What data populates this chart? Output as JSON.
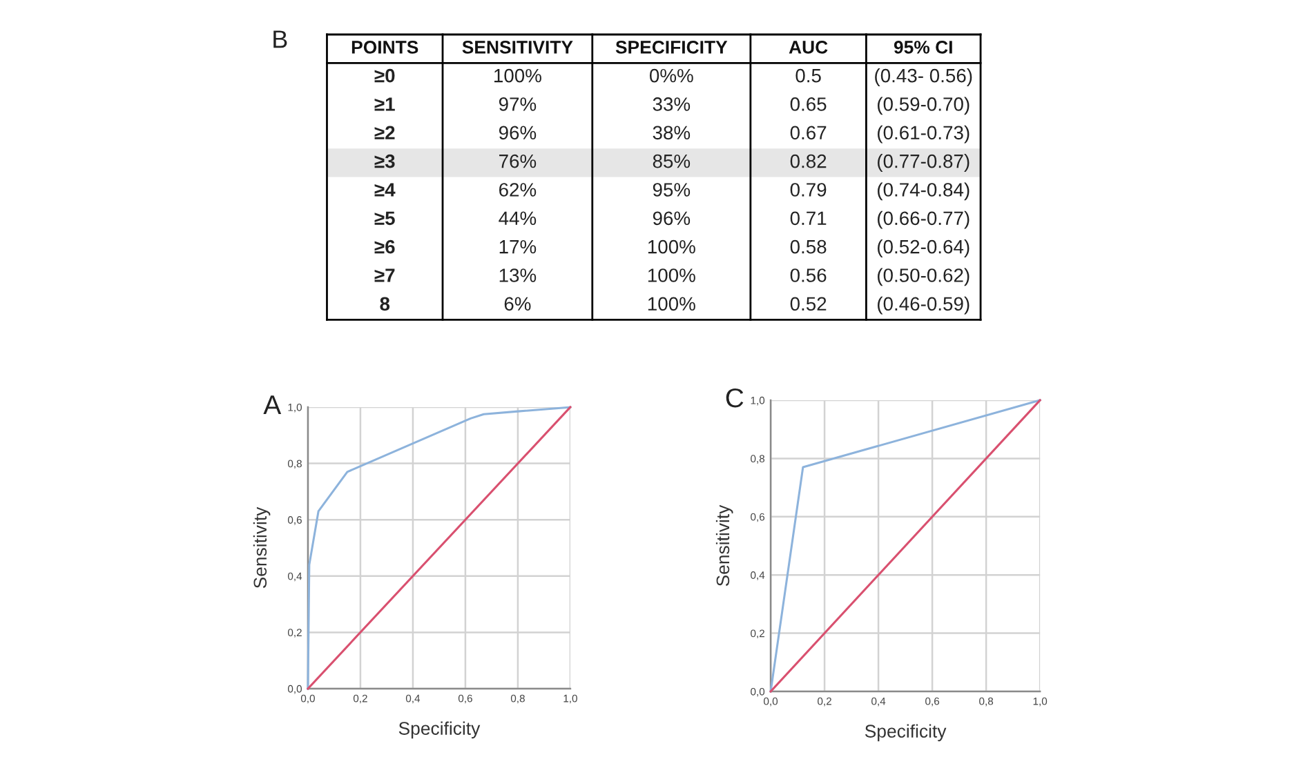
{
  "chart_data": [
    {
      "type": "other",
      "title": "B",
      "categories": [
        "POINTS",
        "SENSITIVITY",
        "SPECIFICITY",
        "AUC",
        "95% CI"
      ],
      "cell_labels": [
        [
          "≥0",
          "100%",
          "0%%",
          "0.5",
          "(0.43- 0.56)"
        ],
        [
          "≥1",
          "97%",
          "33%",
          "0.65",
          "(0.59-0.70)"
        ],
        [
          "≥2",
          "96%",
          "38%",
          "0.67",
          "(0.61-0.73)"
        ],
        [
          "≥3",
          "76%",
          "85%",
          "0.82",
          "(0.77-0.87)"
        ],
        [
          "≥4",
          "62%",
          "95%",
          "0.79",
          "(0.74-0.84)"
        ],
        [
          "≥5",
          "44%",
          "96%",
          "0.71",
          "(0.66-0.77)"
        ],
        [
          "≥6",
          "17%",
          "100%",
          "0.58",
          "(0.52-0.64)"
        ],
        [
          "≥7",
          "13%",
          "100%",
          "0.56",
          "(0.50-0.62)"
        ],
        [
          "8",
          "6%",
          "100%",
          "0.52",
          "(0.46-0.59)"
        ]
      ],
      "colors": [
        "#ffffff",
        "#ffffff",
        "#ffffff",
        "#e6e6e6",
        "#ffffff",
        "#ffffff",
        "#ffffff",
        "#ffffff",
        "#ffffff"
      ]
    },
    {
      "type": "line",
      "title": "A",
      "xlabel": "Specificity",
      "ylabel": "Sensitivity",
      "xlim": [
        0,
        1
      ],
      "ylim": [
        0,
        1
      ],
      "xticks": [
        {
          "value": 0,
          "label": "0,0"
        },
        {
          "value": 0.2,
          "label": "0,2"
        },
        {
          "value": 0.4,
          "label": "0,4"
        },
        {
          "value": 0.6,
          "label": "0,6"
        },
        {
          "value": 0.8,
          "label": "0,8"
        },
        {
          "value": 1,
          "label": "1,0"
        }
      ],
      "yticks": [
        {
          "value": 0,
          "label": "0,0"
        },
        {
          "value": 0.2,
          "label": "0,2"
        },
        {
          "value": 0.4,
          "label": "0,4"
        },
        {
          "value": 0.6,
          "label": "0,6"
        },
        {
          "value": 0.8,
          "label": "0,8"
        },
        {
          "value": 1,
          "label": "1,0"
        }
      ],
      "grid": true,
      "series": [
        {
          "color": "#8db3dc",
          "x": [
            0,
            0.005,
            0.04,
            0.15,
            0.62,
            0.67,
            0.8,
            1
          ],
          "values": [
            0,
            0.44,
            0.63,
            0.77,
            0.96,
            0.975,
            0.985,
            1
          ]
        },
        {
          "color": "#d9506f",
          "x": [
            0,
            1
          ],
          "values": [
            0,
            1
          ]
        }
      ]
    },
    {
      "type": "line",
      "title": "C",
      "xlabel": "Specificity",
      "ylabel": "Sensitivity",
      "xlim": [
        0,
        1
      ],
      "ylim": [
        0,
        1
      ],
      "xticks": [
        {
          "value": 0,
          "label": "0,0"
        },
        {
          "value": 0.2,
          "label": "0,2"
        },
        {
          "value": 0.4,
          "label": "0,4"
        },
        {
          "value": 0.6,
          "label": "0,6"
        },
        {
          "value": 0.8,
          "label": "0,8"
        },
        {
          "value": 1,
          "label": "1,0"
        }
      ],
      "yticks": [
        {
          "value": 0,
          "label": "0,0"
        },
        {
          "value": 0.2,
          "label": "0,2"
        },
        {
          "value": 0.4,
          "label": "0,4"
        },
        {
          "value": 0.6,
          "label": "0,6"
        },
        {
          "value": 0.8,
          "label": "0,8"
        },
        {
          "value": 1,
          "label": "1,0"
        }
      ],
      "grid": true,
      "series": [
        {
          "color": "#8db3dc",
          "x": [
            0,
            0.12,
            1
          ],
          "values": [
            0,
            0.77,
            1
          ]
        },
        {
          "color": "#d9506f",
          "x": [
            0,
            1
          ],
          "values": [
            0,
            1
          ]
        }
      ]
    }
  ]
}
